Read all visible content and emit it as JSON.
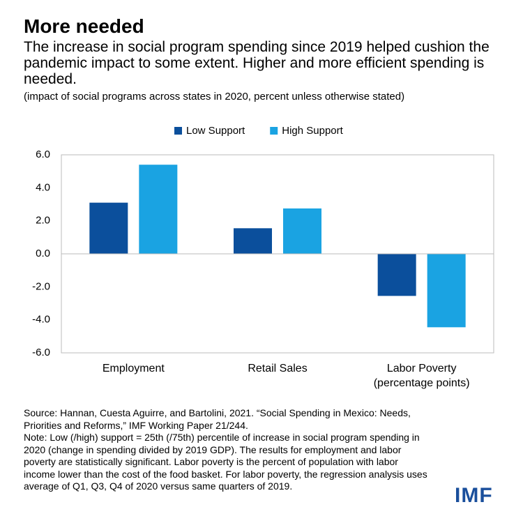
{
  "chart_data": {
    "type": "bar",
    "title": "More needed",
    "subtitle": "The increase in social program spending since 2019 helped cushion the pandemic impact to some extent. Higher and more efficient spending is needed.",
    "note": "(impact of social programs across states in 2020, percent unless otherwise stated)",
    "categories": [
      "Employment",
      "Retail Sales",
      "Labor Poverty (percentage points)"
    ],
    "series": [
      {
        "name": "Low Support",
        "color": "#0b4f9c",
        "values": [
          3.1,
          1.55,
          -2.55
        ]
      },
      {
        "name": "High Support",
        "color": "#1aa3e2",
        "values": [
          5.4,
          2.75,
          -4.45
        ]
      }
    ],
    "ylim": [
      -6,
      6
    ],
    "yticks": [
      {
        "value": 6,
        "label": "6.0"
      },
      {
        "value": 4,
        "label": "4.0"
      },
      {
        "value": 2,
        "label": "2.0"
      },
      {
        "value": 0,
        "label": "0.0"
      },
      {
        "value": -2,
        "label": "-2.0"
      },
      {
        "value": -4,
        "label": "-4.0"
      },
      {
        "value": -6,
        "label": "-6.0"
      }
    ],
    "grid": false,
    "legend": "top",
    "source": "Source: Hannan, Cuesta Aguirre, and Bartolini, 2021. “Social Spending in Mexico: Needs, Priorities and Reforms,” IMF Working Paper 21/244.",
    "footnote": "Note: Low (/high) support = 25th (/75th) percentile of increase in social program spending in 2020 (change in spending divided by 2019 GDP). The results for employment and labor poverty are statistically significant. Labor poverty is the percent of population with labor income lower than the cost of the food basket. For labor poverty, the regression analysis uses average of Q1, Q3, Q4 of 2020 versus same quarters of 2019.",
    "logo": "IMF"
  }
}
